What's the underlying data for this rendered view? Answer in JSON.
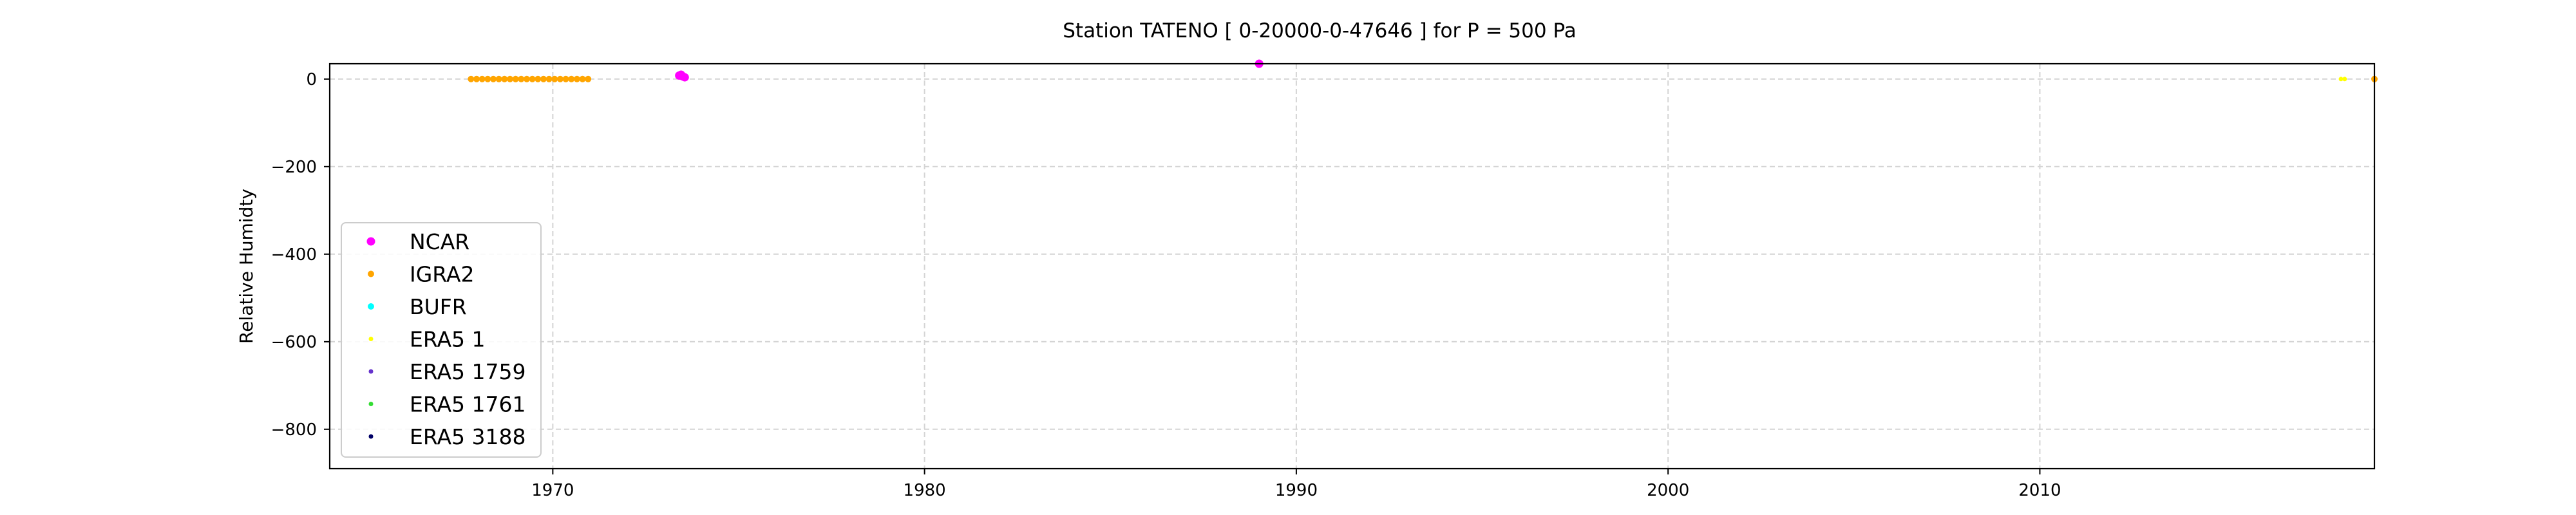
{
  "chart_data": {
    "type": "scatter",
    "title": "Station  TATENO [ 0-20000-0-47646 ]  for P = 500 Pa",
    "xlabel": "",
    "ylabel": "Relative Humidty",
    "xlim": [
      1964.0,
      2019.0
    ],
    "ylim": [
      -890,
      35
    ],
    "xticks": [
      1970,
      1980,
      1990,
      2000,
      2010
    ],
    "yticks": [
      0,
      -200,
      -400,
      -600,
      -800
    ],
    "grid": true,
    "legend_position": "lower-left",
    "series": [
      {
        "name": "NCAR",
        "color": "#ff00ff",
        "marker_size": "large",
        "points": [
          [
            1973.4,
            8
          ],
          [
            1973.45,
            10
          ],
          [
            1973.5,
            6
          ],
          [
            1973.55,
            4
          ],
          [
            1989.0,
            35
          ]
        ]
      },
      {
        "name": "IGRA2",
        "color": "#ffa500",
        "marker_size": "medium",
        "points": [
          [
            1967.8,
            0
          ],
          [
            1967.95,
            0
          ],
          [
            1968.1,
            0
          ],
          [
            1968.25,
            0
          ],
          [
            1968.4,
            0
          ],
          [
            1968.55,
            0
          ],
          [
            1968.7,
            0
          ],
          [
            1968.85,
            0
          ],
          [
            1969.0,
            0
          ],
          [
            1969.15,
            0
          ],
          [
            1969.3,
            0
          ],
          [
            1969.45,
            0
          ],
          [
            1969.6,
            0
          ],
          [
            1969.75,
            0
          ],
          [
            1969.9,
            0
          ],
          [
            1970.05,
            0
          ],
          [
            1970.2,
            0
          ],
          [
            1970.35,
            0
          ],
          [
            1970.5,
            0
          ],
          [
            1970.65,
            0
          ],
          [
            1970.8,
            0
          ],
          [
            1970.95,
            0
          ],
          [
            2019.0,
            0
          ]
        ]
      },
      {
        "name": "BUFR",
        "color": "#00ffff",
        "marker_size": "medium",
        "points": []
      },
      {
        "name": "ERA5 1",
        "color": "#ffff00",
        "marker_size": "small",
        "points": [
          [
            2018.1,
            0
          ],
          [
            2018.2,
            0
          ]
        ]
      },
      {
        "name": "ERA5 1759",
        "color": "#6633cc",
        "marker_size": "small",
        "points": []
      },
      {
        "name": "ERA5 1761",
        "color": "#33dd33",
        "marker_size": "small",
        "points": []
      },
      {
        "name": "ERA5 3188",
        "color": "#000066",
        "marker_size": "small",
        "points": []
      }
    ]
  }
}
